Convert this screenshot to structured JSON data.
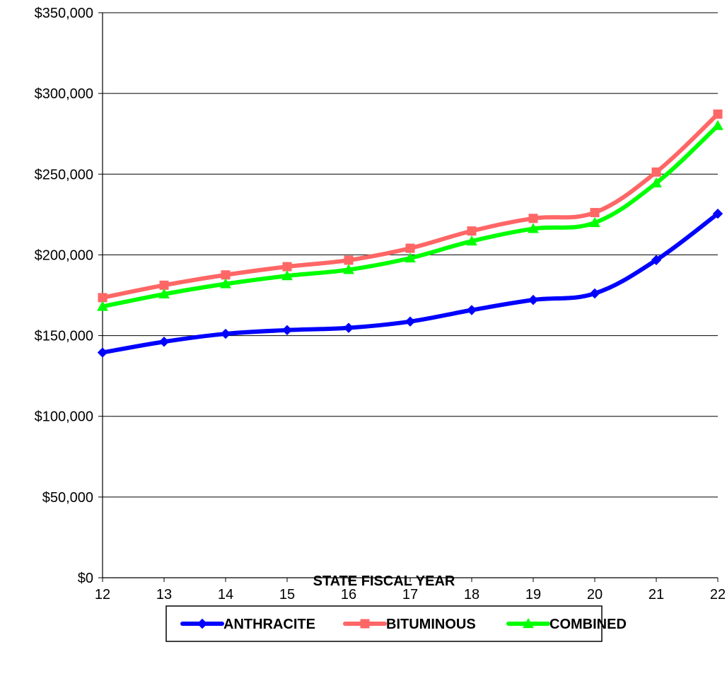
{
  "chart_data": {
    "type": "line",
    "title": "",
    "xlabel": "STATE FISCAL YEAR",
    "ylabel": "",
    "x": [
      "12",
      "13",
      "14",
      "15",
      "16",
      "17",
      "18",
      "19",
      "20",
      "21",
      "22"
    ],
    "ylim": [
      0,
      350000
    ],
    "y_ticks": [
      0,
      50000,
      100000,
      150000,
      200000,
      250000,
      300000,
      350000
    ],
    "y_tick_labels": [
      "$0",
      "$50,000",
      "$100,000",
      "$150,000",
      "$200,000",
      "$250,000",
      "$300,000",
      "$350,000"
    ],
    "grid": "horizontal",
    "legend_position": "bottom",
    "series": [
      {
        "name": "ANTHRACITE",
        "color": "#0000ff",
        "marker": "diamond",
        "values": [
          139500,
          146200,
          151100,
          153400,
          154800,
          158700,
          165800,
          172100,
          176100,
          196800,
          225500
        ]
      },
      {
        "name": "BITUMINOUS",
        "color": "#ff6666",
        "marker": "square",
        "values": [
          173500,
          181200,
          187600,
          192700,
          196700,
          204100,
          214800,
          222600,
          226200,
          251300,
          287200
        ]
      },
      {
        "name": "COMBINED",
        "color": "#00ff00",
        "marker": "triangle",
        "values": [
          168000,
          175700,
          182000,
          187000,
          190800,
          198000,
          208500,
          216200,
          219900,
          244500,
          280000
        ]
      }
    ]
  }
}
